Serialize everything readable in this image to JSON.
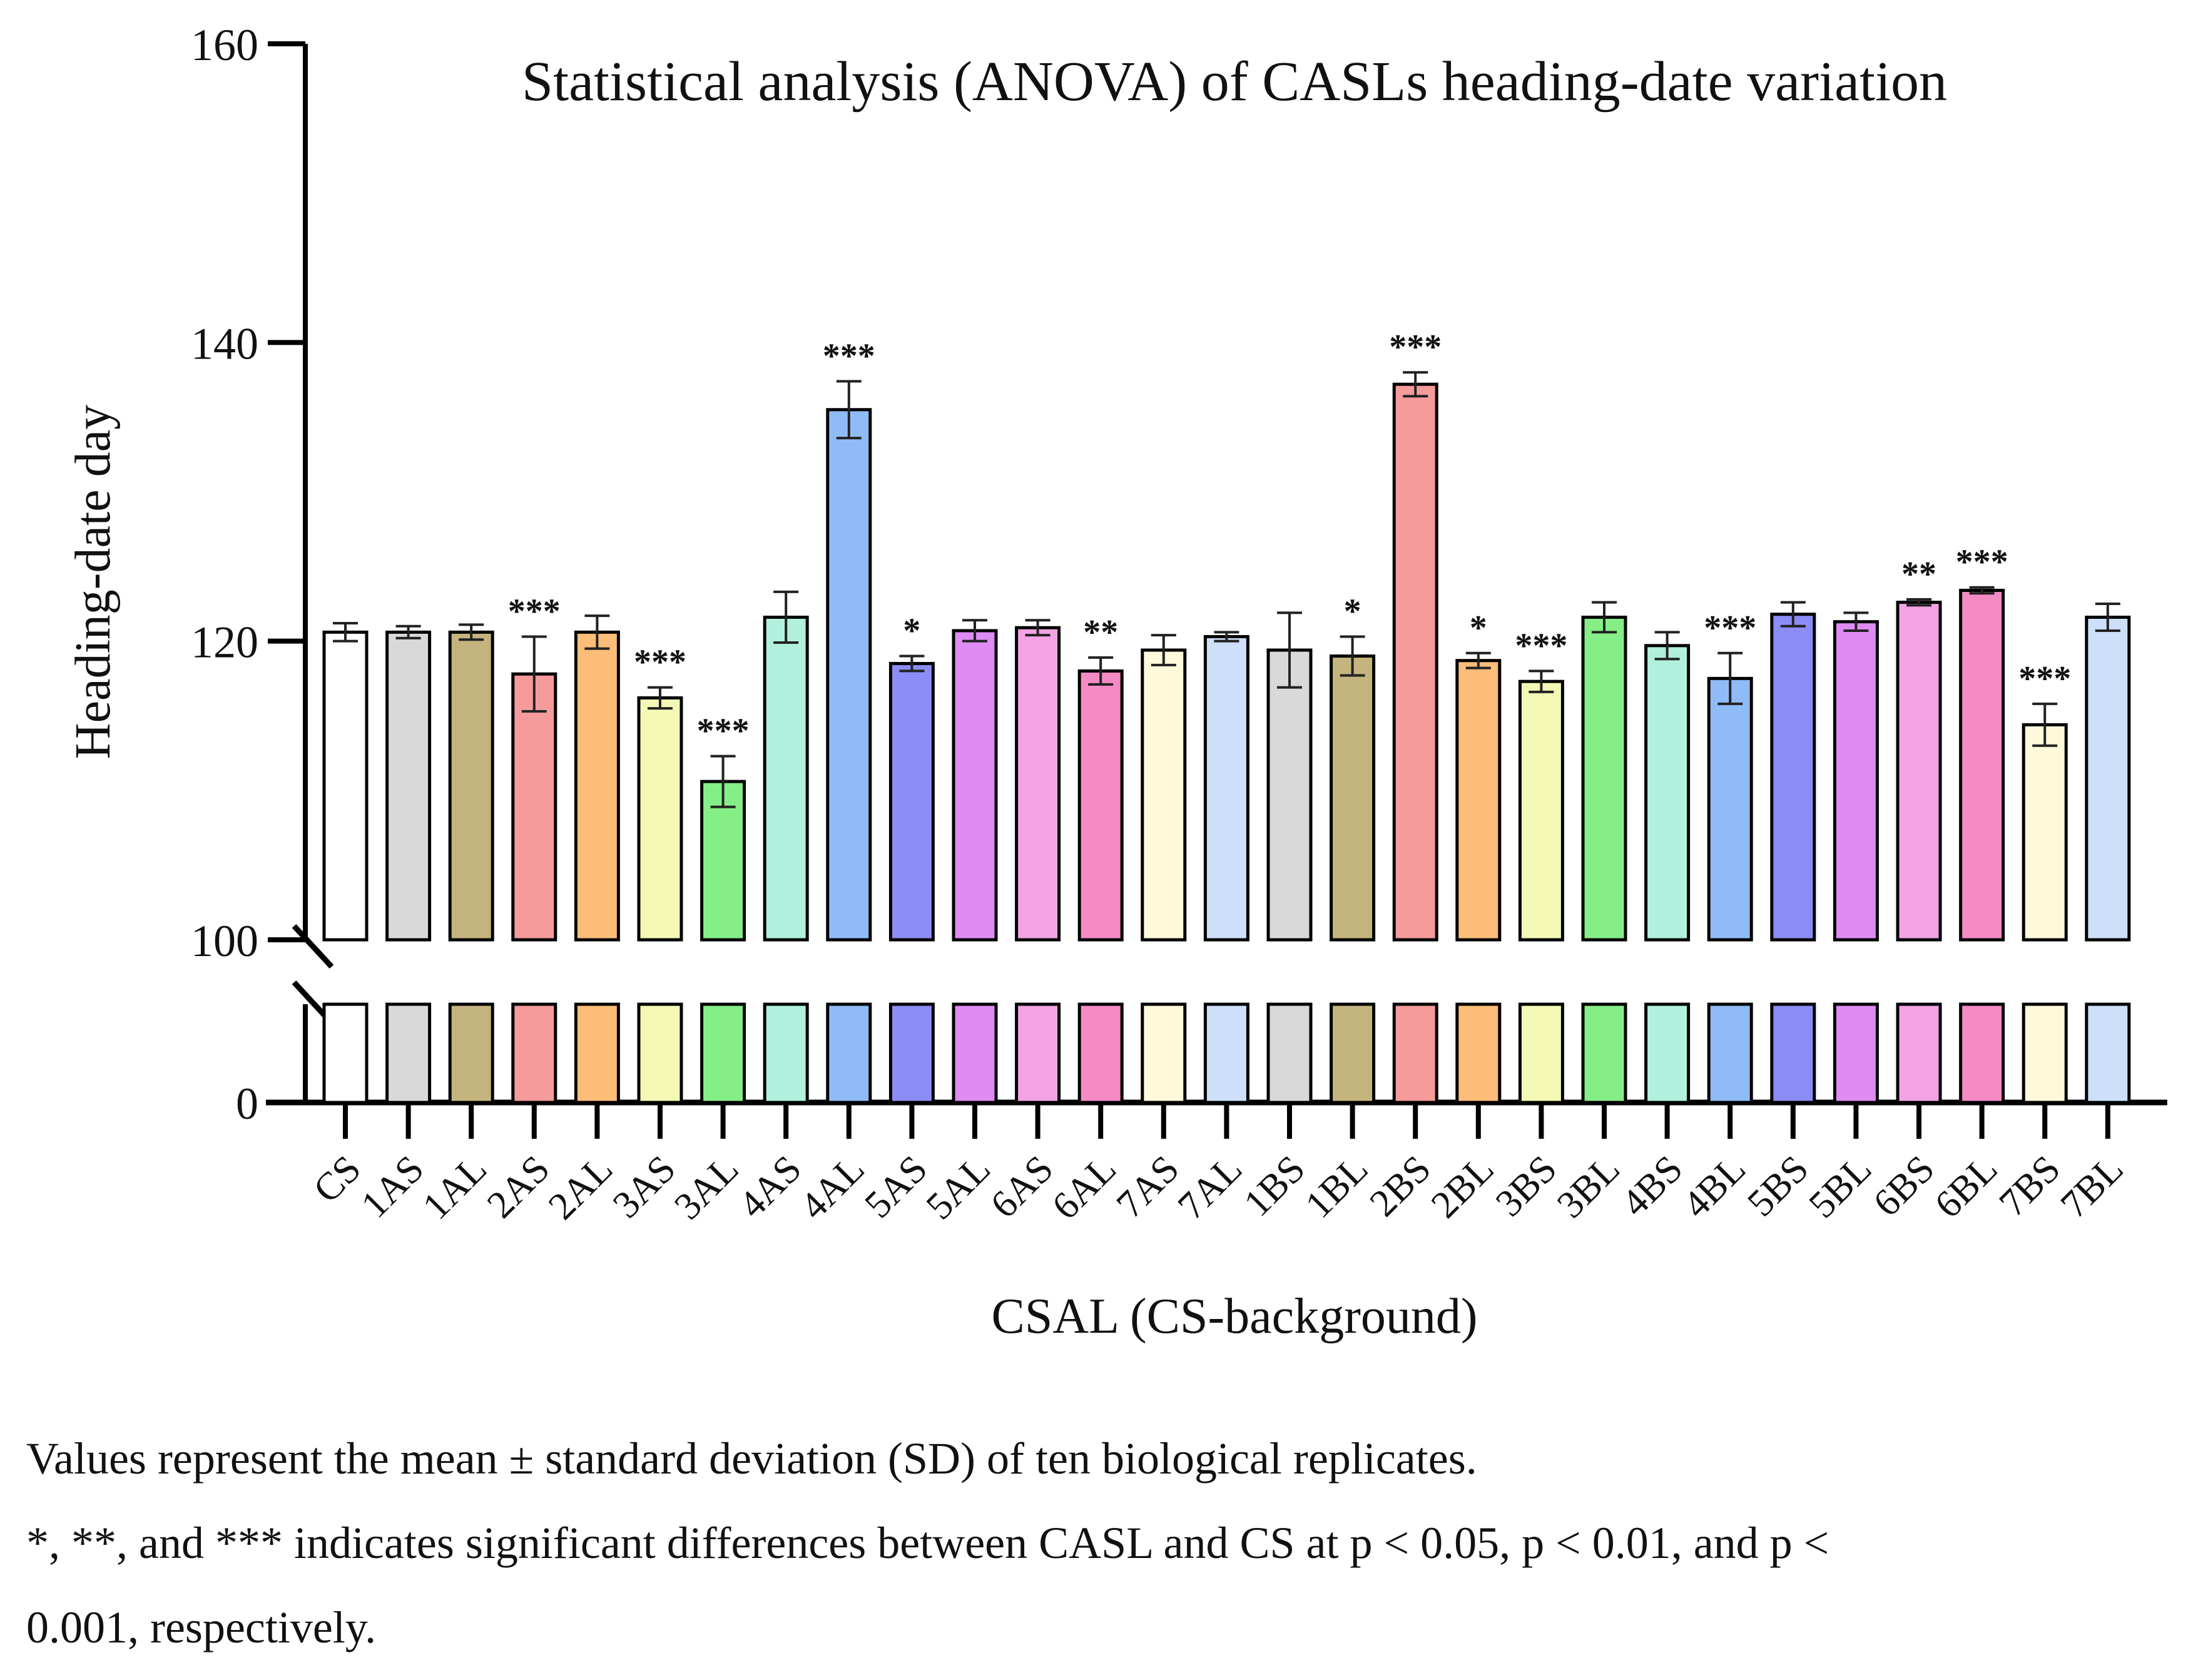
{
  "chart_data": {
    "type": "bar",
    "title": "Statistical analysis (ANOVA) of CASLs heading-date variation",
    "xlabel": "CSAL (CS-background)",
    "ylabel": "Heading-date day",
    "y_upper_range": [
      100,
      160
    ],
    "y_lower_range": [
      0,
      100
    ],
    "y_upper_ticks": [
      100,
      120,
      140,
      160
    ],
    "y_lower_ticks": [
      0
    ],
    "axis_break": true,
    "grid": false,
    "categories": [
      "CS",
      "1AS",
      "1AL",
      "2AS",
      "2AL",
      "3AS",
      "3AL",
      "4AS",
      "4AL",
      "5AS",
      "5AL",
      "6AS",
      "6AL",
      "7AS",
      "7AL",
      "1BS",
      "1BL",
      "2BS",
      "2BL",
      "3BS",
      "3BL",
      "4BS",
      "4BL",
      "5BS",
      "5BL",
      "6BS",
      "6BL",
      "7BS",
      "7BL"
    ],
    "values": [
      120.6,
      120.6,
      120.6,
      117.8,
      120.6,
      116.2,
      110.6,
      121.6,
      135.5,
      118.5,
      120.7,
      120.9,
      118.0,
      119.4,
      120.3,
      119.4,
      119.0,
      137.2,
      118.7,
      117.3,
      121.6,
      119.7,
      117.5,
      121.8,
      121.3,
      122.6,
      123.4,
      114.4,
      121.6
    ],
    "errors": [
      0.6,
      0.4,
      0.5,
      2.5,
      1.1,
      0.7,
      1.7,
      1.7,
      1.9,
      0.5,
      0.7,
      0.5,
      0.9,
      1.0,
      0.3,
      2.5,
      1.3,
      0.8,
      0.5,
      0.7,
      1.0,
      0.9,
      1.7,
      0.8,
      0.6,
      0.2,
      0.2,
      1.4,
      0.9
    ],
    "significance": [
      "",
      "",
      "",
      "***",
      "",
      "***",
      "***",
      "",
      "***",
      "*",
      "",
      "",
      "**",
      "",
      "",
      "",
      "*",
      "***",
      "*",
      "***",
      "",
      "",
      "***",
      "",
      "",
      "**",
      "***",
      "***",
      ""
    ],
    "colors": [
      "#ffffff",
      "#d9d9d9",
      "#c4b47e",
      "#f59b9b",
      "#fcbd78",
      "#f3f9b5",
      "#86ee86",
      "#b0f0dc",
      "#8fbcf6",
      "#8c8cf7",
      "#de8cf3",
      "#f3a3e3",
      "#f58bc4",
      "#fff8da",
      "#cddff9",
      "#d9d9d9",
      "#c4b47e",
      "#f59b9b",
      "#fcbd78",
      "#f3f9b5",
      "#86ee86",
      "#b0f0dc",
      "#8fbcf6",
      "#8c8cf7",
      "#de8cf3",
      "#f3a3e3",
      "#f58bc4",
      "#fff8da",
      "#cddff9"
    ]
  },
  "caption": {
    "line1": "Values represent the mean ± standard deviation (SD) of ten biological replicates.",
    "line2": "*, **, and *** indicates significant differences between CASL and CS at p < 0.05, p < 0.01, and p <",
    "line3": "0.001, respectively."
  }
}
